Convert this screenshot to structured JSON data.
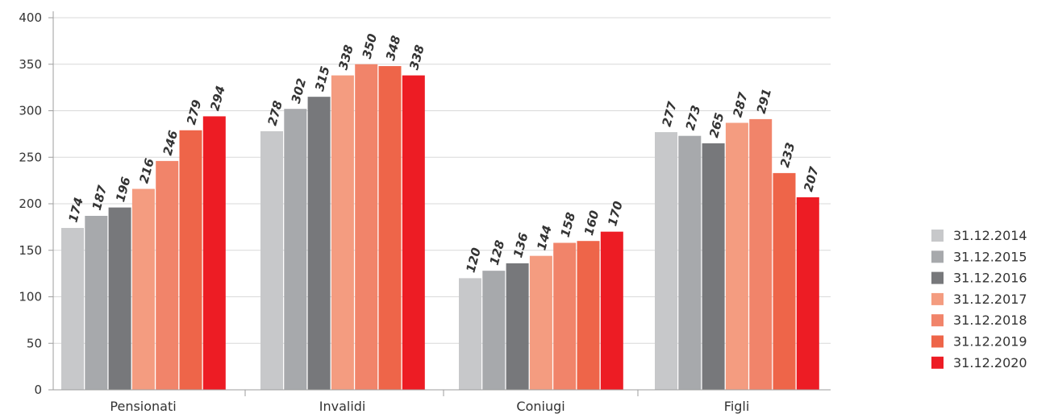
{
  "chart_data": {
    "type": "bar",
    "categories": [
      "Pensionati",
      "Invalidi",
      "Coniugi",
      "Figli"
    ],
    "series": [
      {
        "name": "31.12.2014",
        "color": "#c7c8ca",
        "values": [
          174,
          278,
          120,
          277
        ]
      },
      {
        "name": "31.12.2015",
        "color": "#a7a9ac",
        "values": [
          187,
          302,
          128,
          273
        ]
      },
      {
        "name": "31.12.2016",
        "color": "#77787b",
        "values": [
          196,
          315,
          136,
          265
        ]
      },
      {
        "name": "31.12.2017",
        "color": "#f49c80",
        "values": [
          216,
          338,
          144,
          287
        ]
      },
      {
        "name": "31.12.2018",
        "color": "#f1846a",
        "values": [
          246,
          350,
          158,
          291
        ]
      },
      {
        "name": "31.12.2019",
        "color": "#ee6549",
        "values": [
          279,
          348,
          160,
          233
        ]
      },
      {
        "name": "31.12.2020",
        "color": "#ed1c24",
        "values": [
          294,
          338,
          170,
          207
        ]
      }
    ],
    "bar_values": [
      [
        174,
        187,
        196,
        216,
        246,
        279,
        294
      ],
      [
        278,
        302,
        315,
        338,
        350,
        348,
        338
      ],
      [
        120,
        128,
        136,
        144,
        158,
        160,
        170
      ],
      [
        277,
        273,
        265,
        287,
        291,
        233,
        207
      ]
    ],
    "yticks": [
      "0",
      "50",
      "100",
      "150",
      "200",
      "250",
      "300",
      "350",
      "400"
    ],
    "ylim": [
      0,
      400
    ],
    "grid": true,
    "legend_position": "right",
    "title": "",
    "xlabel": "",
    "ylabel": ""
  }
}
